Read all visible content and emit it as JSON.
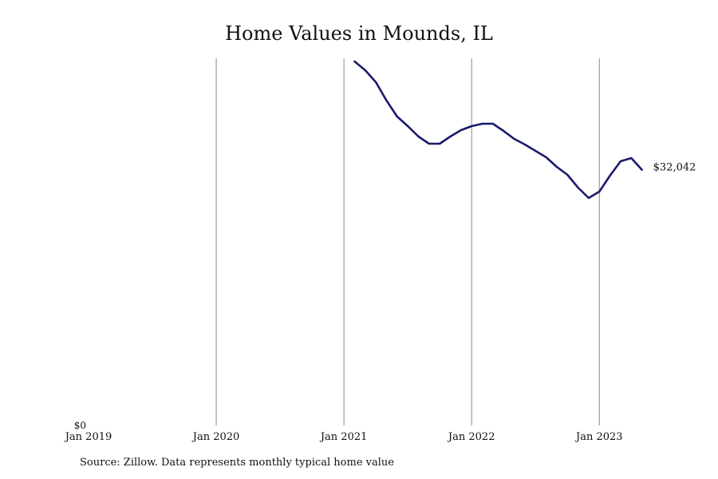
{
  "chart_data": {
    "type": "line",
    "title": "Home Values in Mounds, IL",
    "xlabel": "",
    "ylabel": "",
    "source": "Source: Zillow. Data represents monthly typical home value",
    "x_ticks": [
      "Jan 2019",
      "Jan 2020",
      "Jan 2021",
      "Jan 2022",
      "Jan 2023"
    ],
    "y_ticks": [
      "$0"
    ],
    "xlim": [
      "2019-01",
      "2023-12"
    ],
    "ylim": [
      0,
      46000
    ],
    "grid": "vertical",
    "end_label": "$32,042",
    "line_color": "#1a1a6e",
    "series": [
      {
        "x": [
          "2021-02",
          "2021-03",
          "2021-04",
          "2021-05",
          "2021-06",
          "2021-07",
          "2021-08",
          "2021-09",
          "2021-10",
          "2021-11",
          "2021-12",
          "2022-01",
          "2022-02",
          "2022-03",
          "2022-04",
          "2022-05",
          "2022-06",
          "2022-07",
          "2022-08",
          "2022-09",
          "2022-10",
          "2022-11",
          "2022-12",
          "2023-01",
          "2023-02",
          "2023-03",
          "2023-04",
          "2023-05"
        ],
        "values": [
          45600,
          44500,
          43000,
          40700,
          38700,
          37500,
          36200,
          35300,
          35300,
          36200,
          37000,
          37500,
          37800,
          37800,
          36900,
          35900,
          35200,
          34400,
          33600,
          32400,
          31400,
          29800,
          28500,
          29300,
          31300,
          33100,
          33500,
          32042
        ]
      }
    ]
  }
}
